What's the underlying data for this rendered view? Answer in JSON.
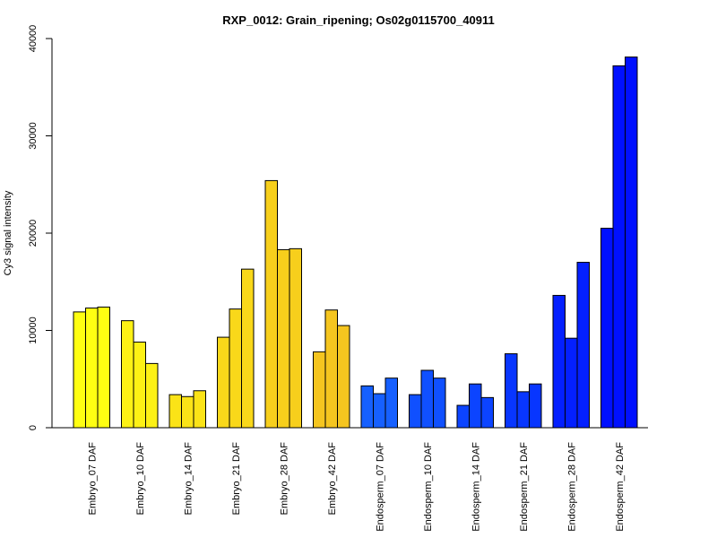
{
  "chart_data": {
    "type": "bar",
    "title": "RXP_0012: Grain_ripening; Os02g0115700_40911",
    "ylabel": "Cy3 signal intensity",
    "xlabel": "",
    "ylim": [
      0,
      40000
    ],
    "yticks": [
      0,
      10000,
      20000,
      30000,
      40000
    ],
    "yticklabels": [
      "0",
      "10000",
      "20000",
      "30000",
      "40000"
    ],
    "grid": false,
    "legend": "none",
    "categories": [
      "Embryo_07 DAF",
      "Embryo_10 DAF",
      "Embryo_14 DAF",
      "Embryo_21 DAF",
      "Embryo_28 DAF",
      "Embryo_42 DAF",
      "Endosperm_07 DAF",
      "Endosperm_10 DAF",
      "Endosperm_14 DAF",
      "Endosperm_21 DAF",
      "Endosperm_28 DAF",
      "Endosperm_42 DAF"
    ],
    "group_colors": [
      "#ffff12",
      "#fdf115",
      "#fbe317",
      "#f9d81a",
      "#f7cf1c",
      "#f5c51f",
      "#1660ff",
      "#1050ff",
      "#0c44ff",
      "#0836ff",
      "#0420ff",
      "#0010ff"
    ],
    "replicates": [
      [
        11900,
        12300,
        12400
      ],
      [
        11000,
        8800,
        6600
      ],
      [
        3400,
        3200,
        3800
      ],
      [
        9300,
        12200,
        16300
      ],
      [
        25400,
        18300,
        18400
      ],
      [
        7800,
        12100,
        10500
      ],
      [
        4300,
        3500,
        5100
      ],
      [
        3400,
        5900,
        5100
      ],
      [
        2300,
        4500,
        3100
      ],
      [
        7600,
        3700,
        4500
      ],
      [
        13600,
        9200,
        17000
      ],
      [
        20500,
        37200,
        38100
      ]
    ]
  }
}
